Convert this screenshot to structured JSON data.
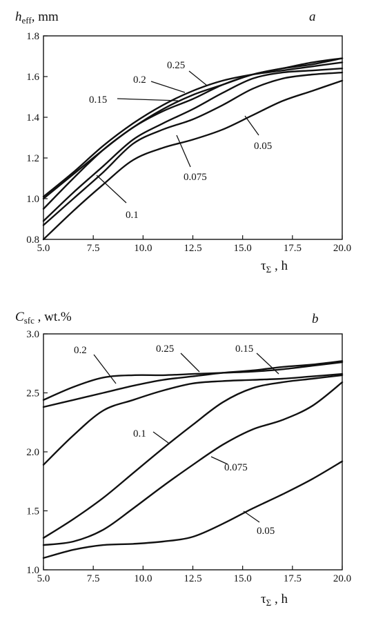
{
  "chart_data": [
    {
      "type": "line",
      "panel_letter": "a",
      "ylabel": {
        "base": "h",
        "sub": "eff",
        "unit": ", mm"
      },
      "xlabel": {
        "base": "τ",
        "sub": "Σ",
        "unit": " , h"
      },
      "xlim": [
        5.0,
        20.0
      ],
      "ylim": [
        0.8,
        1.8
      ],
      "x_ticks": [
        "5.0",
        "7.5",
        "10.0",
        "12.5",
        "15.0",
        "17.5",
        "20.0"
      ],
      "y_ticks": [
        "0.8",
        "1.0",
        "1.2",
        "1.4",
        "1.6",
        "1.8"
      ],
      "grid": false,
      "series": [
        {
          "name": "0.25",
          "x": [
            5.0,
            6.5,
            8.0,
            9.5,
            11.0,
            12.5,
            14.0,
            15.5,
            17.0,
            18.5,
            20.0
          ],
          "values": [
            1.01,
            1.13,
            1.26,
            1.37,
            1.46,
            1.53,
            1.58,
            1.61,
            1.63,
            1.65,
            1.67
          ]
        },
        {
          "name": "0.2",
          "x": [
            5.0,
            6.5,
            8.0,
            9.5,
            11.0,
            12.5,
            14.0,
            15.5,
            17.0,
            18.5,
            20.0
          ],
          "values": [
            0.95,
            1.1,
            1.24,
            1.35,
            1.44,
            1.51,
            1.56,
            1.61,
            1.64,
            1.66,
            1.69
          ]
        },
        {
          "name": "0.15",
          "x": [
            5.0,
            6.5,
            8.0,
            9.5,
            11.0,
            12.5,
            14.0,
            15.5,
            17.0,
            18.5,
            20.0
          ],
          "values": [
            1.0,
            1.12,
            1.24,
            1.35,
            1.43,
            1.49,
            1.56,
            1.61,
            1.64,
            1.67,
            1.69
          ]
        },
        {
          "name": "0.1",
          "x": [
            5.0,
            6.5,
            8.0,
            9.5,
            11.0,
            12.5,
            14.0,
            15.5,
            17.0,
            18.5,
            20.0
          ],
          "values": [
            0.89,
            1.03,
            1.16,
            1.29,
            1.37,
            1.44,
            1.52,
            1.59,
            1.62,
            1.63,
            1.64
          ]
        },
        {
          "name": "0.075",
          "x": [
            5.0,
            6.5,
            8.0,
            9.5,
            11.0,
            12.5,
            14.0,
            15.5,
            17.0,
            18.5,
            20.0
          ],
          "values": [
            0.87,
            1.0,
            1.13,
            1.27,
            1.34,
            1.39,
            1.46,
            1.54,
            1.59,
            1.61,
            1.62
          ]
        },
        {
          "name": "0.05",
          "x": [
            5.0,
            6.5,
            8.0,
            9.5,
            11.0,
            12.5,
            14.0,
            15.5,
            17.0,
            18.5,
            20.0
          ],
          "values": [
            0.8,
            0.94,
            1.07,
            1.19,
            1.25,
            1.29,
            1.34,
            1.41,
            1.48,
            1.53,
            1.58
          ]
        }
      ],
      "annotations": [
        "0.25",
        "0.2",
        "0.15",
        "0.1",
        "0.075",
        "0.05"
      ]
    },
    {
      "type": "line",
      "panel_letter": "b",
      "ylabel": {
        "base": "C",
        "sub": "sfc",
        "unit": " , wt.%"
      },
      "xlabel": {
        "base": "τ",
        "sub": "Σ",
        "unit": " , h"
      },
      "xlim": [
        5.0,
        20.0
      ],
      "ylim": [
        1.0,
        3.0
      ],
      "x_ticks": [
        "5.0",
        "7.5",
        "10.0",
        "12.5",
        "15.0",
        "17.5",
        "20.0"
      ],
      "y_ticks": [
        "1.0",
        "1.5",
        "2.0",
        "2.5",
        "3.0"
      ],
      "grid": false,
      "series": [
        {
          "name": "0.25",
          "x": [
            5.0,
            6.5,
            8.0,
            9.5,
            11.0,
            12.5,
            14.0,
            15.5,
            17.0,
            18.5,
            20.0
          ],
          "values": [
            2.38,
            2.44,
            2.5,
            2.56,
            2.61,
            2.64,
            2.67,
            2.69,
            2.72,
            2.74,
            2.77
          ]
        },
        {
          "name": "0.2",
          "x": [
            5.0,
            6.5,
            8.0,
            9.5,
            11.0,
            12.5,
            14.0,
            15.5,
            17.0,
            18.5,
            20.0
          ],
          "values": [
            2.44,
            2.55,
            2.63,
            2.65,
            2.65,
            2.66,
            2.67,
            2.68,
            2.7,
            2.73,
            2.76
          ]
        },
        {
          "name": "0.15",
          "x": [
            5.0,
            6.5,
            8.0,
            9.5,
            11.0,
            12.5,
            14.0,
            15.5,
            17.0,
            18.5,
            20.0
          ],
          "values": [
            1.89,
            2.14,
            2.35,
            2.44,
            2.52,
            2.58,
            2.6,
            2.61,
            2.62,
            2.64,
            2.66
          ]
        },
        {
          "name": "0.1",
          "x": [
            5.0,
            6.5,
            8.0,
            9.5,
            11.0,
            12.5,
            14.0,
            15.5,
            17.0,
            18.5,
            20.0
          ],
          "values": [
            1.27,
            1.43,
            1.61,
            1.82,
            2.03,
            2.23,
            2.42,
            2.54,
            2.59,
            2.62,
            2.65
          ]
        },
        {
          "name": "0.075",
          "x": [
            5.0,
            6.5,
            8.0,
            9.5,
            11.0,
            12.5,
            14.0,
            15.5,
            17.0,
            18.5,
            20.0
          ],
          "values": [
            1.21,
            1.24,
            1.34,
            1.52,
            1.71,
            1.89,
            2.06,
            2.19,
            2.27,
            2.39,
            2.59
          ]
        },
        {
          "name": "0.05",
          "x": [
            5.0,
            6.5,
            8.0,
            9.5,
            11.0,
            12.5,
            14.0,
            15.5,
            17.0,
            18.5,
            20.0
          ],
          "values": [
            1.1,
            1.17,
            1.21,
            1.22,
            1.24,
            1.28,
            1.39,
            1.52,
            1.64,
            1.77,
            1.92
          ]
        }
      ],
      "annotations": [
        "0.25",
        "0.2",
        "0.15",
        "0.1",
        "0.075",
        "0.05"
      ]
    }
  ]
}
